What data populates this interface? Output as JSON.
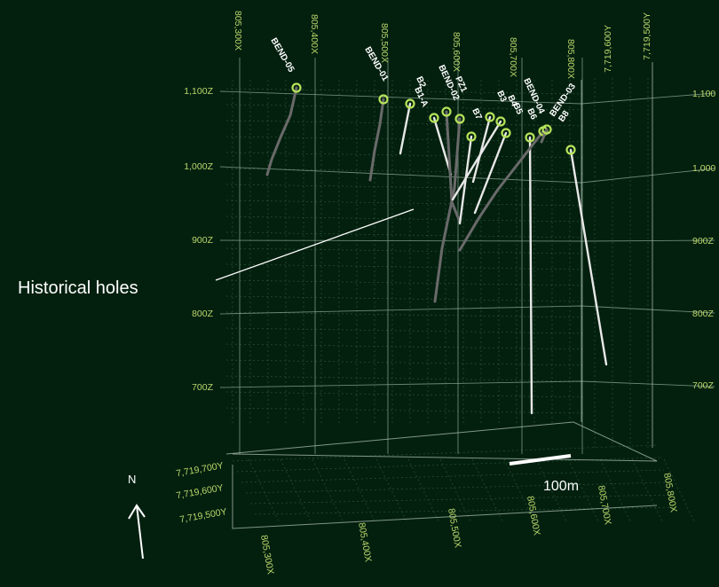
{
  "diagram": {
    "callout": "Historical holes",
    "scale_bar": "100m",
    "north": "N",
    "colors": {
      "background": "#03200f",
      "axis_text": "#b9d66a",
      "collar": "#b7e35a",
      "hole_dark": "#6a6a6a",
      "hole_light": "#e8e8e8"
    },
    "axes": {
      "top_easting": [
        "805,300X",
        "805,400X",
        "805,500X",
        "805,600X",
        "805,700X",
        "805,800X"
      ],
      "top_northing": [
        "7,719,600Y",
        "7,719,500Y"
      ],
      "left_elevation": [
        "1,100Z",
        "1,000Z",
        "900Z",
        "800Z",
        "700Z"
      ],
      "right_elevation": [
        "1,100",
        "1,000",
        "900Z",
        "800Z",
        "700Z"
      ],
      "bottom_easting": [
        "805,300X",
        "805,400X",
        "805,500X",
        "805,600X",
        "805,700X",
        "805,800X"
      ],
      "bottom_northing": [
        "7,719,700Y",
        "7,719,600Y",
        "7,719,500Y"
      ]
    },
    "holes": [
      {
        "label": "BEND-05",
        "type": "modern"
      },
      {
        "label": "BEND-01",
        "type": "modern"
      },
      {
        "label": "B2",
        "type": "historical"
      },
      {
        "label": "B1-A",
        "type": "historical"
      },
      {
        "label": "BEND-02",
        "type": "modern"
      },
      {
        "label": "PZ1",
        "type": "modern"
      },
      {
        "label": "B7",
        "type": "historical"
      },
      {
        "label": "B3",
        "type": "historical"
      },
      {
        "label": "B4",
        "type": "historical"
      },
      {
        "label": "B5",
        "type": "historical"
      },
      {
        "label": "B6",
        "type": "historical"
      },
      {
        "label": "BEND-04",
        "type": "modern"
      },
      {
        "label": "BEND-03",
        "type": "modern"
      },
      {
        "label": "B8",
        "type": "historical"
      }
    ]
  }
}
